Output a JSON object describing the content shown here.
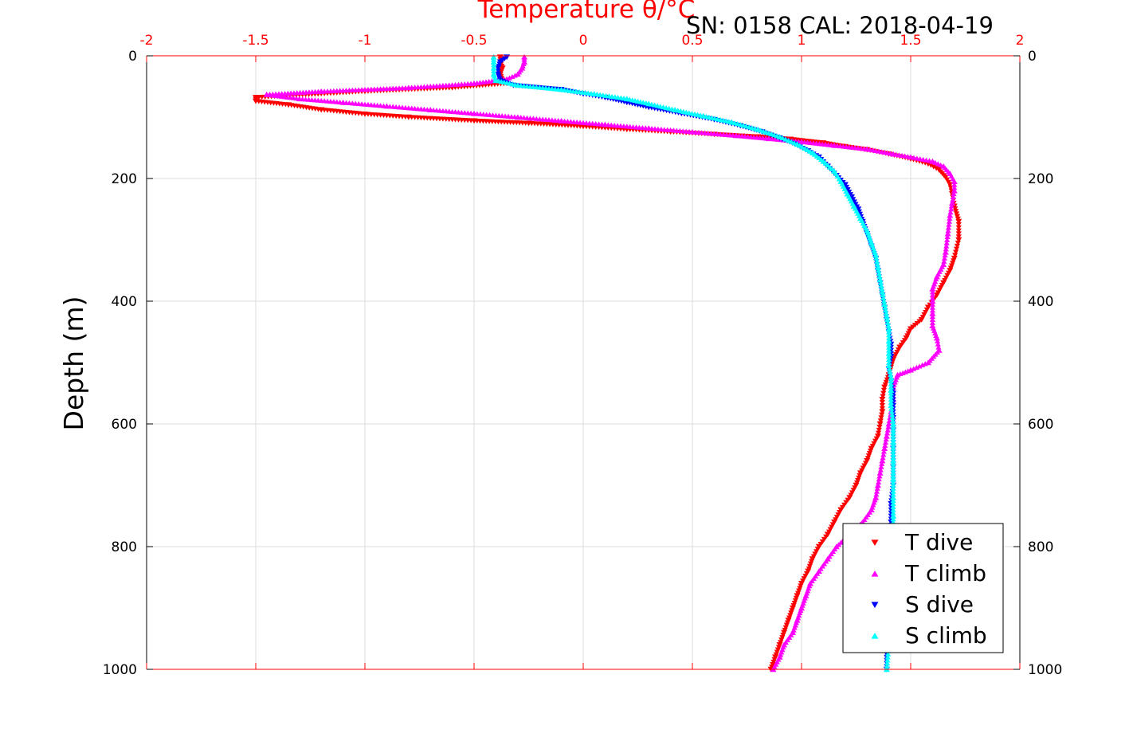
{
  "chart_data": {
    "type": "scatter",
    "title": "Temperature θ/°C",
    "subtitle": "SN: 0158  CAL: 2018-04-19",
    "xlabel": "Temperature θ/°C",
    "ylabel": "Depth (m)",
    "xlim": [
      -2,
      2
    ],
    "ylim": [
      0,
      1000
    ],
    "y_reversed": true,
    "x_axis_position": "top",
    "x_tick_color": "#ff0000",
    "xticks": [
      -2,
      -1.5,
      -1,
      -0.5,
      0,
      0.5,
      1,
      1.5,
      2
    ],
    "xtick_labels": [
      "-2",
      "-1.5",
      "-1",
      "-0.5",
      "0",
      "0.5",
      "1",
      "1.5",
      "2"
    ],
    "yticks": [
      0,
      200,
      400,
      600,
      800,
      1000
    ],
    "ytick_labels": [
      "0",
      "200",
      "400",
      "600",
      "800",
      "1000"
    ],
    "grid": true,
    "legend_position": "bottom-right",
    "series": [
      {
        "name": "T dive",
        "color": "#ff0000",
        "marker": "triangle-down",
        "points": [
          [
            -0.38,
            2
          ],
          [
            -0.38,
            10
          ],
          [
            -0.37,
            20
          ],
          [
            -0.38,
            30
          ],
          [
            -0.37,
            40
          ],
          [
            -0.35,
            45
          ],
          [
            -0.6,
            52
          ],
          [
            -1.0,
            58
          ],
          [
            -1.5,
            68
          ],
          [
            -1.5,
            74
          ],
          [
            -1.35,
            80
          ],
          [
            -1.2,
            88
          ],
          [
            -1.0,
            95
          ],
          [
            -0.8,
            100
          ],
          [
            -0.5,
            106
          ],
          [
            -0.25,
            110
          ],
          [
            0.0,
            115
          ],
          [
            0.2,
            120
          ],
          [
            0.4,
            124
          ],
          [
            0.6,
            128
          ],
          [
            0.8,
            132
          ],
          [
            0.95,
            136
          ],
          [
            1.1,
            142
          ],
          [
            1.2,
            148
          ],
          [
            1.3,
            153
          ],
          [
            1.4,
            160
          ],
          [
            1.5,
            168
          ],
          [
            1.58,
            176
          ],
          [
            1.63,
            186
          ],
          [
            1.66,
            198
          ],
          [
            1.68,
            210
          ],
          [
            1.69,
            225
          ],
          [
            1.7,
            245
          ],
          [
            1.72,
            270
          ],
          [
            1.72,
            300
          ],
          [
            1.7,
            330
          ],
          [
            1.68,
            350
          ],
          [
            1.65,
            370
          ],
          [
            1.62,
            390
          ],
          [
            1.58,
            410
          ],
          [
            1.55,
            430
          ],
          [
            1.5,
            445
          ],
          [
            1.48,
            460
          ],
          [
            1.45,
            475
          ],
          [
            1.42,
            495
          ],
          [
            1.4,
            520
          ],
          [
            1.38,
            540
          ],
          [
            1.37,
            560
          ],
          [
            1.37,
            580
          ],
          [
            1.36,
            600
          ],
          [
            1.35,
            620
          ],
          [
            1.32,
            640
          ],
          [
            1.3,
            660
          ],
          [
            1.27,
            680
          ],
          [
            1.25,
            700
          ],
          [
            1.22,
            720
          ],
          [
            1.18,
            740
          ],
          [
            1.15,
            760
          ],
          [
            1.12,
            780
          ],
          [
            1.08,
            800
          ],
          [
            1.05,
            820
          ],
          [
            1.03,
            840
          ],
          [
            1.0,
            860
          ],
          [
            0.98,
            880
          ],
          [
            0.96,
            900
          ],
          [
            0.94,
            920
          ],
          [
            0.92,
            940
          ],
          [
            0.9,
            960
          ],
          [
            0.88,
            980
          ],
          [
            0.86,
            1000
          ]
        ]
      },
      {
        "name": "T climb",
        "color": "#ff00ff",
        "marker": "triangle-up",
        "points": [
          [
            -0.27,
            2
          ],
          [
            -0.27,
            10
          ],
          [
            -0.28,
            20
          ],
          [
            -0.3,
            30
          ],
          [
            -0.35,
            38
          ],
          [
            -0.5,
            45
          ],
          [
            -0.8,
            52
          ],
          [
            -1.2,
            58
          ],
          [
            -1.45,
            63
          ],
          [
            -1.3,
            70
          ],
          [
            -1.1,
            76
          ],
          [
            -0.9,
            82
          ],
          [
            -0.7,
            88
          ],
          [
            -0.5,
            94
          ],
          [
            -0.3,
            100
          ],
          [
            -0.1,
            106
          ],
          [
            0.1,
            112
          ],
          [
            0.3,
            118
          ],
          [
            0.5,
            124
          ],
          [
            0.7,
            130
          ],
          [
            0.85,
            135
          ],
          [
            1.0,
            140
          ],
          [
            1.15,
            146
          ],
          [
            1.3,
            152
          ],
          [
            1.42,
            160
          ],
          [
            1.5,
            165
          ],
          [
            1.6,
            172
          ],
          [
            1.65,
            180
          ],
          [
            1.68,
            192
          ],
          [
            1.7,
            205
          ],
          [
            1.7,
            220
          ],
          [
            1.69,
            240
          ],
          [
            1.68,
            260
          ],
          [
            1.67,
            290
          ],
          [
            1.66,
            320
          ],
          [
            1.65,
            340
          ],
          [
            1.62,
            360
          ],
          [
            1.6,
            380
          ],
          [
            1.6,
            400
          ],
          [
            1.6,
            420
          ],
          [
            1.6,
            440
          ],
          [
            1.62,
            460
          ],
          [
            1.63,
            480
          ],
          [
            1.58,
            500
          ],
          [
            1.5,
            512
          ],
          [
            1.44,
            520
          ],
          [
            1.42,
            540
          ],
          [
            1.42,
            560
          ],
          [
            1.41,
            580
          ],
          [
            1.4,
            600
          ],
          [
            1.39,
            620
          ],
          [
            1.38,
            640
          ],
          [
            1.37,
            660
          ],
          [
            1.36,
            680
          ],
          [
            1.35,
            700
          ],
          [
            1.34,
            720
          ],
          [
            1.32,
            740
          ],
          [
            1.28,
            760
          ],
          [
            1.22,
            780
          ],
          [
            1.16,
            800
          ],
          [
            1.12,
            820
          ],
          [
            1.08,
            840
          ],
          [
            1.04,
            860
          ],
          [
            1.02,
            880
          ],
          [
            1.0,
            900
          ],
          [
            0.98,
            920
          ],
          [
            0.96,
            940
          ],
          [
            0.92,
            960
          ],
          [
            0.9,
            980
          ],
          [
            0.87,
            1000
          ]
        ]
      },
      {
        "name": "S dive",
        "color": "#0000ff",
        "marker": "triangle-down",
        "points": [
          [
            -0.35,
            2
          ],
          [
            -0.38,
            10
          ],
          [
            -0.39,
            20
          ],
          [
            -0.39,
            30
          ],
          [
            -0.38,
            40
          ],
          [
            -0.32,
            48
          ],
          [
            -0.1,
            55
          ],
          [
            0.0,
            62
          ],
          [
            0.1,
            68
          ],
          [
            0.2,
            76
          ],
          [
            0.3,
            84
          ],
          [
            0.45,
            94
          ],
          [
            0.6,
            104
          ],
          [
            0.72,
            114
          ],
          [
            0.82,
            124
          ],
          [
            0.9,
            134
          ],
          [
            0.97,
            144
          ],
          [
            1.03,
            155
          ],
          [
            1.08,
            165
          ],
          [
            1.12,
            180
          ],
          [
            1.16,
            195
          ],
          [
            1.2,
            210
          ],
          [
            1.23,
            230
          ],
          [
            1.26,
            250
          ],
          [
            1.28,
            270
          ],
          [
            1.3,
            290
          ],
          [
            1.32,
            310
          ],
          [
            1.34,
            330
          ],
          [
            1.35,
            350
          ],
          [
            1.36,
            370
          ],
          [
            1.37,
            390
          ],
          [
            1.38,
            410
          ],
          [
            1.39,
            430
          ],
          [
            1.4,
            450
          ],
          [
            1.41,
            470
          ],
          [
            1.41,
            490
          ],
          [
            1.4,
            510
          ],
          [
            1.41,
            530
          ],
          [
            1.42,
            550
          ],
          [
            1.42,
            570
          ],
          [
            1.42,
            590
          ],
          [
            1.42,
            610
          ],
          [
            1.42,
            640
          ],
          [
            1.42,
            670
          ],
          [
            1.42,
            700
          ],
          [
            1.41,
            730
          ],
          [
            1.41,
            760
          ],
          [
            1.41,
            790
          ],
          [
            1.41,
            820
          ],
          [
            1.4,
            850
          ],
          [
            1.4,
            880
          ],
          [
            1.4,
            910
          ],
          [
            1.4,
            940
          ],
          [
            1.39,
            970
          ],
          [
            1.39,
            1000
          ]
        ]
      },
      {
        "name": "S climb",
        "color": "#00ffff",
        "marker": "triangle-up",
        "points": [
          [
            -0.41,
            2
          ],
          [
            -0.41,
            10
          ],
          [
            -0.41,
            20
          ],
          [
            -0.41,
            30
          ],
          [
            -0.4,
            40
          ],
          [
            -0.3,
            48
          ],
          [
            -0.1,
            55
          ],
          [
            0.05,
            62
          ],
          [
            0.2,
            70
          ],
          [
            0.3,
            78
          ],
          [
            0.42,
            88
          ],
          [
            0.55,
            98
          ],
          [
            0.68,
            108
          ],
          [
            0.8,
            120
          ],
          [
            0.9,
            132
          ],
          [
            0.98,
            144
          ],
          [
            1.05,
            158
          ],
          [
            1.1,
            172
          ],
          [
            1.15,
            188
          ],
          [
            1.18,
            205
          ],
          [
            1.21,
            225
          ],
          [
            1.24,
            245
          ],
          [
            1.27,
            265
          ],
          [
            1.3,
            285
          ],
          [
            1.32,
            305
          ],
          [
            1.34,
            325
          ],
          [
            1.35,
            345
          ],
          [
            1.36,
            365
          ],
          [
            1.37,
            385
          ],
          [
            1.38,
            405
          ],
          [
            1.39,
            425
          ],
          [
            1.4,
            445
          ],
          [
            1.4,
            465
          ],
          [
            1.4,
            485
          ],
          [
            1.4,
            505
          ],
          [
            1.41,
            525
          ],
          [
            1.41,
            545
          ],
          [
            1.41,
            570
          ],
          [
            1.42,
            600
          ],
          [
            1.42,
            630
          ],
          [
            1.42,
            660
          ],
          [
            1.42,
            690
          ],
          [
            1.42,
            720
          ],
          [
            1.42,
            750
          ],
          [
            1.42,
            780
          ],
          [
            1.41,
            810
          ],
          [
            1.41,
            840
          ],
          [
            1.41,
            870
          ],
          [
            1.4,
            900
          ],
          [
            1.4,
            930
          ],
          [
            1.4,
            960
          ],
          [
            1.39,
            1000
          ]
        ]
      }
    ]
  }
}
